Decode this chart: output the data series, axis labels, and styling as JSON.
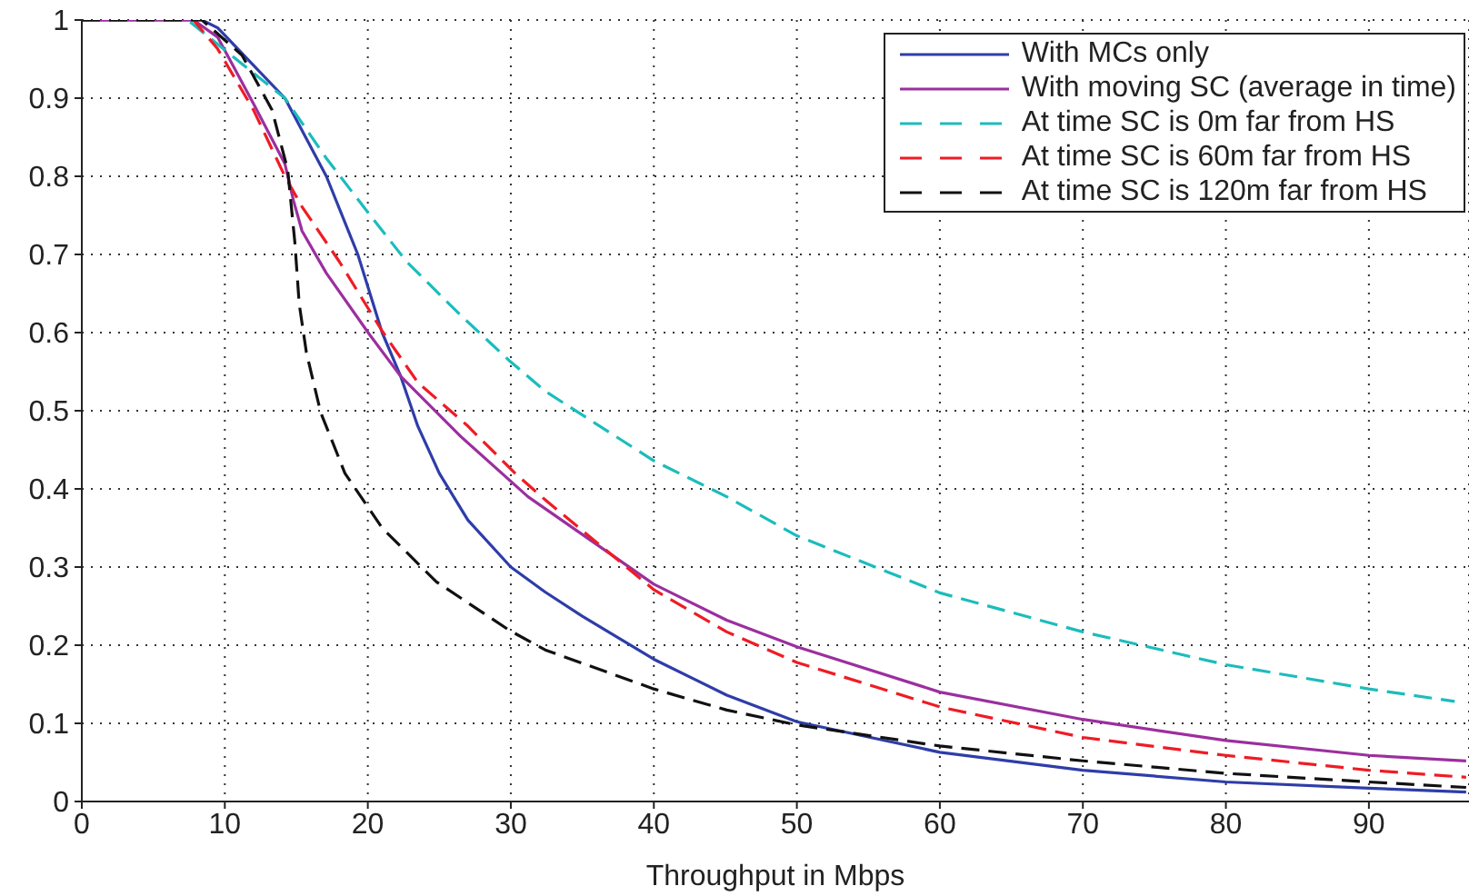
{
  "chart_data": {
    "type": "line",
    "xlabel": "Throughput in Mbps",
    "xlim": [
      0,
      97
    ],
    "xticks": [
      0,
      10,
      20,
      30,
      40,
      50,
      60,
      70,
      80,
      90
    ],
    "ylim": [
      0,
      1
    ],
    "yticks": [
      0,
      0.1,
      0.2,
      0.3,
      0.4,
      0.5,
      0.6,
      0.7,
      0.8,
      0.9,
      1
    ],
    "grid": true,
    "legend": "top right",
    "marker": "none",
    "series": [
      {
        "name": "With MCs only",
        "color": "#2e3da8",
        "line_style": "solid",
        "x": [
          0,
          8.4,
          9.5,
          14.2,
          17.1,
          19.3,
          21,
          22.3,
          23.5,
          25,
          27,
          30,
          32.4,
          35,
          40,
          45.1,
          50,
          60,
          70,
          80,
          90,
          96.8
        ],
        "values": [
          1,
          1,
          0.99,
          0.9,
          0.8,
          0.7,
          0.6,
          0.544,
          0.48,
          0.42,
          0.36,
          0.3,
          0.268,
          0.237,
          0.182,
          0.136,
          0.102,
          0.063,
          0.04,
          0.025,
          0.017,
          0.012
        ]
      },
      {
        "name": "With moving SC (average in time)",
        "color": "#9b2f9e",
        "line_style": "solid",
        "x": [
          0,
          7.8,
          9.5,
          12,
          14.2,
          14.8,
          15.4,
          17.1,
          20.1,
          22.3,
          26.5,
          31.2,
          40,
          45.1,
          50,
          60,
          70,
          80,
          90,
          96.8
        ],
        "values": [
          1,
          1,
          0.978,
          0.893,
          0.816,
          0.769,
          0.73,
          0.676,
          0.598,
          0.544,
          0.467,
          0.39,
          0.278,
          0.232,
          0.198,
          0.14,
          0.105,
          0.078,
          0.059,
          0.052
        ]
      },
      {
        "name": "At time SC is 0m far from HS",
        "color": "#1cbcbc",
        "line_style": "dashed",
        "x": [
          0,
          7.4,
          12,
          14.2,
          17.1,
          19.7,
          22.7,
          26.5,
          29.9,
          32.4,
          40,
          45.1,
          50,
          60,
          70,
          80,
          90,
          96
        ],
        "values": [
          1,
          1,
          0.932,
          0.9,
          0.823,
          0.761,
          0.691,
          0.622,
          0.564,
          0.525,
          0.436,
          0.39,
          0.34,
          0.267,
          0.217,
          0.175,
          0.144,
          0.128
        ]
      },
      {
        "name": "At time SC is 60m far from HS",
        "color": "#ee1c25",
        "line_style": "dashed",
        "x": [
          0,
          7.8,
          9.5,
          12,
          14.2,
          15.4,
          18,
          21,
          23.5,
          26.9,
          30.3,
          32.4,
          40,
          45.1,
          50,
          60,
          70,
          80,
          90,
          96.8
        ],
        "values": [
          1,
          1,
          0.963,
          0.885,
          0.8,
          0.761,
          0.691,
          0.602,
          0.536,
          0.482,
          0.42,
          0.386,
          0.271,
          0.217,
          0.178,
          0.121,
          0.082,
          0.059,
          0.04,
          0.031
        ]
      },
      {
        "name": "At time SC is 120m far from HS",
        "color": "#111111",
        "line_style": "dashed",
        "x": [
          0,
          8.4,
          11.2,
          13.3,
          14.4,
          14.9,
          15.2,
          15.7,
          16.7,
          18.4,
          21,
          24.8,
          29.9,
          32.4,
          40,
          45.1,
          50,
          60,
          70,
          80,
          90,
          96.8
        ],
        "values": [
          1,
          1,
          0.955,
          0.885,
          0.808,
          0.715,
          0.637,
          0.575,
          0.498,
          0.42,
          0.35,
          0.281,
          0.219,
          0.194,
          0.144,
          0.117,
          0.098,
          0.071,
          0.052,
          0.036,
          0.025,
          0.018
        ]
      }
    ]
  }
}
